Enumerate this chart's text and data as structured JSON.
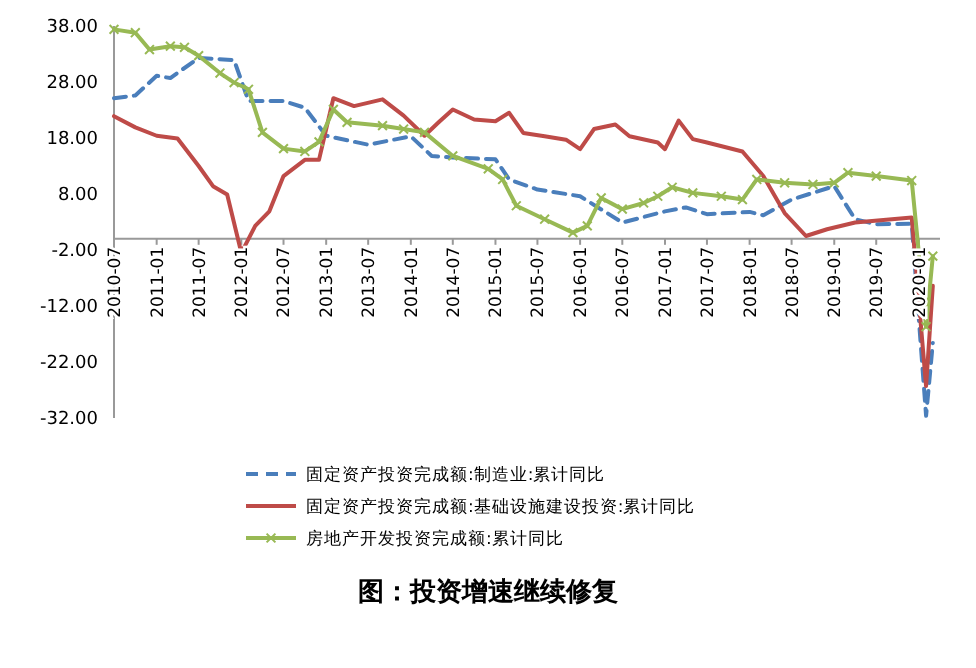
{
  "chart_data": {
    "type": "line",
    "title": "图：投资增速继续修复",
    "ylim": [
      -32,
      38
    ],
    "yticks": [
      {
        "value": 38,
        "label": "38.00"
      },
      {
        "value": 28,
        "label": "28.00"
      },
      {
        "value": 18,
        "label": "18.00"
      },
      {
        "value": 8,
        "label": "8.00"
      },
      {
        "value": -2,
        "label": "-2.00"
      },
      {
        "value": -12,
        "label": "-12.00"
      },
      {
        "value": -22,
        "label": "-22.00"
      },
      {
        "value": -32,
        "label": "-32.00"
      }
    ],
    "xlim": [
      "2010-07",
      "2020-04"
    ],
    "xticks": [
      "2010-07",
      "2011-01",
      "2011-07",
      "2012-01",
      "2012-07",
      "2013-01",
      "2013-07",
      "2014-01",
      "2014-07",
      "2015-01",
      "2015-07",
      "2016-01",
      "2016-07",
      "2017-01",
      "2017-07",
      "2018-01",
      "2018-07",
      "2019-01",
      "2019-07",
      "2020-01"
    ],
    "grid": false,
    "legend": "bottom",
    "series": [
      {
        "name": "固定资产投资完成额:制造业:累计同比",
        "color": "#4a7ebb",
        "line_style": "dashed",
        "marker": "none",
        "x": [
          "2010-07",
          "2010-10",
          "2011-01",
          "2011-03",
          "2011-07",
          "2011-12",
          "2012-02",
          "2012-07",
          "2012-10",
          "2013-01",
          "2013-07",
          "2014-01",
          "2014-04",
          "2014-07",
          "2015-01",
          "2015-03",
          "2015-07",
          "2016-01",
          "2016-07",
          "2017-01",
          "2017-04",
          "2017-07",
          "2018-01",
          "2018-03",
          "2018-07",
          "2019-01",
          "2019-04",
          "2019-07",
          "2019-12",
          "2020-02",
          "2020-03"
        ],
        "values": [
          25.1,
          25.6,
          29.1,
          28.7,
          32.3,
          31.9,
          24.6,
          24.6,
          23.4,
          18.4,
          16.8,
          18.3,
          14.8,
          14.5,
          14.2,
          10.6,
          8.8,
          7.6,
          2.9,
          4.9,
          5.6,
          4.4,
          4.8,
          4.2,
          7.0,
          9.4,
          3.5,
          2.6,
          2.7,
          -31.6,
          -18.6
        ]
      },
      {
        "name": "固定资产投资完成额:基础设施建设投资:累计同比",
        "color": "#be4b48",
        "line_style": "solid",
        "marker": "none",
        "x": [
          "2010-07",
          "2010-10",
          "2011-01",
          "2011-04",
          "2011-07",
          "2011-09",
          "2011-11",
          "2012-01",
          "2012-03",
          "2012-05",
          "2012-07",
          "2012-10",
          "2012-12",
          "2013-02",
          "2013-05",
          "2013-09",
          "2013-12",
          "2014-03",
          "2014-05",
          "2014-07",
          "2014-10",
          "2015-01",
          "2015-03",
          "2015-05",
          "2015-08",
          "2015-11",
          "2016-01",
          "2016-03",
          "2016-06",
          "2016-08",
          "2016-12",
          "2017-01",
          "2017-03",
          "2017-05",
          "2017-07",
          "2017-12",
          "2018-03",
          "2018-06",
          "2018-09",
          "2018-12",
          "2019-04",
          "2019-12",
          "2020-02",
          "2020-03"
        ],
        "values": [
          21.9,
          19.9,
          18.4,
          17.9,
          13,
          9.4,
          7.9,
          -2.5,
          2.3,
          4.9,
          11.2,
          14.1,
          14.1,
          25.1,
          23.7,
          24.9,
          22,
          18.4,
          20.8,
          23.1,
          21.3,
          21,
          22.5,
          18.9,
          18.3,
          17.7,
          16,
          19.6,
          20.4,
          18.3,
          17.2,
          16,
          21.1,
          17.8,
          17.2,
          15.6,
          11.2,
          4.6,
          0.5,
          1.7,
          2.9,
          3.8,
          -26.3,
          -8.4
        ]
      },
      {
        "name": "房地产开发投资完成额:累计同比",
        "color": "#98b954",
        "line_style": "solid",
        "marker": "cross",
        "x": [
          "2010-07",
          "2010-10",
          "2010-12",
          "2011-03",
          "2011-05",
          "2011-07",
          "2011-10",
          "2011-12",
          "2012-02",
          "2012-04",
          "2012-07",
          "2012-10",
          "2012-12",
          "2013-02",
          "2013-04",
          "2013-09",
          "2013-12",
          "2014-03",
          "2014-07",
          "2014-12",
          "2015-02",
          "2015-04",
          "2015-08",
          "2015-12",
          "2016-02",
          "2016-04",
          "2016-07",
          "2016-10",
          "2016-12",
          "2017-02",
          "2017-05",
          "2017-09",
          "2017-12",
          "2018-02",
          "2018-06",
          "2018-10",
          "2019-01",
          "2019-03",
          "2019-07",
          "2019-12",
          "2020-02",
          "2020-03"
        ],
        "values": [
          37.4,
          36.8,
          33.8,
          34.4,
          34.2,
          32.7,
          29.6,
          27.9,
          26.7,
          19,
          16.1,
          15.6,
          17.3,
          23.1,
          20.8,
          20.2,
          19.6,
          19,
          14.8,
          12.5,
          10.6,
          5.9,
          3.5,
          1.1,
          2.3,
          7.3,
          5.3,
          6.4,
          7.6,
          9.2,
          8.2,
          7.6,
          7.0,
          10.6,
          10,
          9.7,
          10,
          11.8,
          11.2,
          10.4,
          -15.7,
          -3.1
        ]
      }
    ]
  }
}
